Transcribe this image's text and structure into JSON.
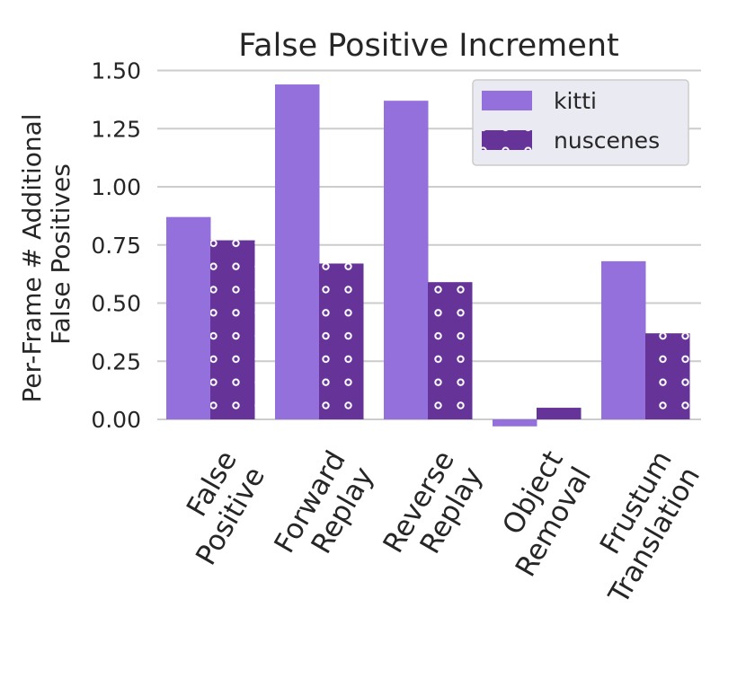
{
  "chart_data": {
    "type": "bar",
    "title": "False Positive Increment",
    "xlabel": "",
    "ylabel": [
      "Per-Frame # Additional",
      "False Positives"
    ],
    "categories": [
      [
        "False",
        "Positive"
      ],
      [
        "Forward",
        "Replay"
      ],
      [
        "Reverse",
        "Replay"
      ],
      [
        "Object",
        "Removal"
      ],
      [
        "Frustum",
        "Translation"
      ]
    ],
    "series": [
      {
        "name": "kitti",
        "values": [
          0.87,
          1.44,
          1.37,
          -0.03,
          0.68
        ],
        "color": "#9370db",
        "pattern": "solid"
      },
      {
        "name": "nuscenes",
        "values": [
          0.77,
          0.67,
          0.59,
          0.05,
          0.37
        ],
        "color": "#663399",
        "pattern": "dots"
      }
    ],
    "ylim": [
      -0.03,
      1.5
    ],
    "yticks": [
      "0.00",
      "0.25",
      "0.50",
      "0.75",
      "1.00",
      "1.25",
      "1.50"
    ],
    "grid": true,
    "legend": "top-right"
  }
}
